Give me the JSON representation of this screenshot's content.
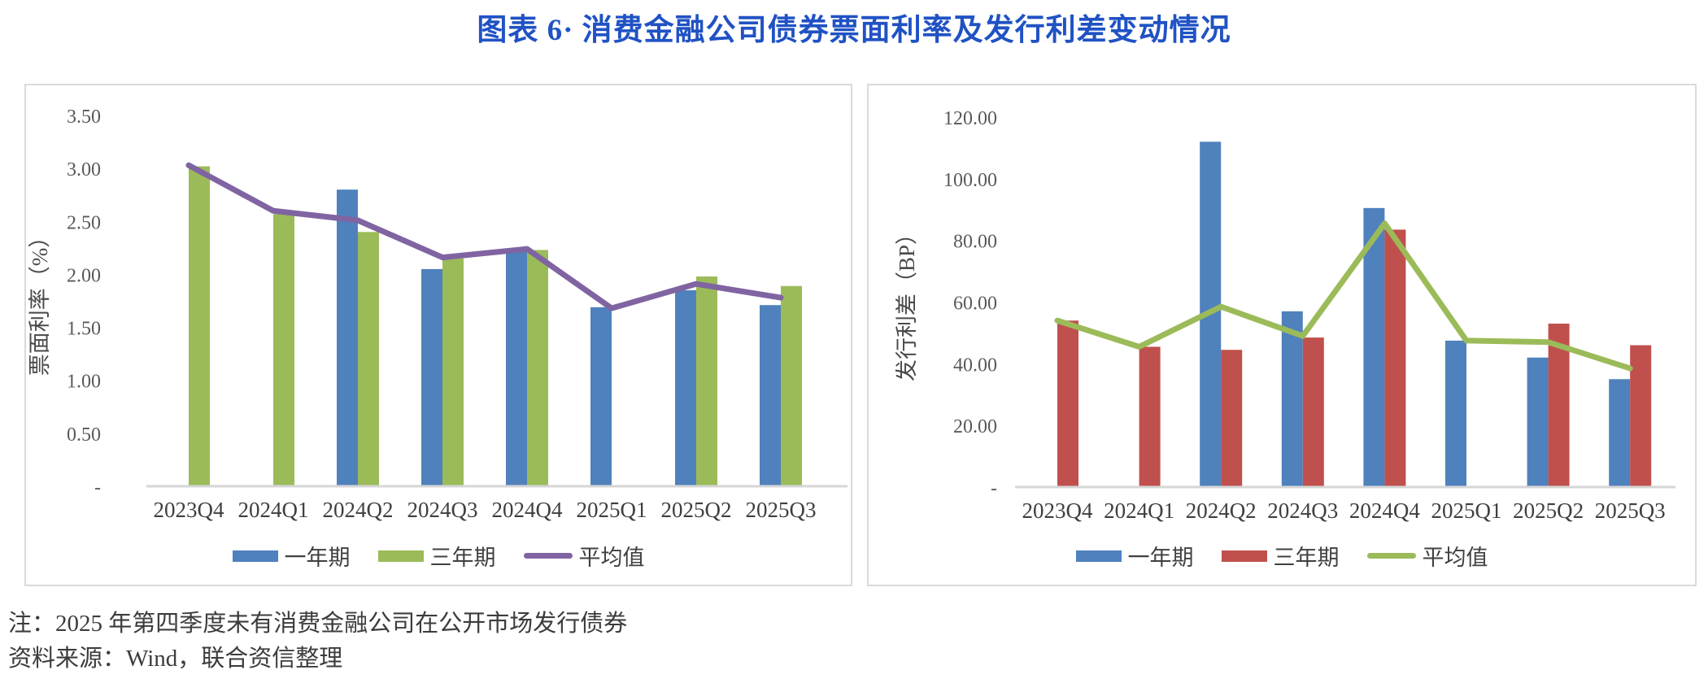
{
  "title": "图表 6· 消费金融公司债券票面利率及发行利差变动情况",
  "notes": [
    "注：2025 年第四季度未有消费金融公司在公开市场发行债券",
    "资料来源：Wind，联合资信整理"
  ],
  "colors": {
    "blue": "#4F81BD",
    "green": "#9BBB59",
    "purple": "#8064A2",
    "red": "#C0504D",
    "axis": "#D6D6D6",
    "title_blue": "#2052C4"
  },
  "chart_data": [
    {
      "type": "bar",
      "name": "coupon-rate-chart",
      "categories": [
        "2023Q4",
        "2024Q1",
        "2024Q2",
        "2024Q3",
        "2024Q4",
        "2025Q1",
        "2025Q2",
        "2025Q3"
      ],
      "series": [
        {
          "name": "一年期",
          "type": "bar",
          "color": "#4F81BD",
          "values": [
            null,
            null,
            2.8,
            2.05,
            2.22,
            1.69,
            1.85,
            1.71
          ]
        },
        {
          "name": "三年期",
          "type": "bar",
          "color": "#9BBB59",
          "values": [
            3.02,
            2.57,
            2.4,
            2.15,
            2.23,
            null,
            1.98,
            1.89
          ]
        },
        {
          "name": "平均值",
          "type": "line",
          "color": "#8064A2",
          "values": [
            3.03,
            2.6,
            2.51,
            2.16,
            2.24,
            1.68,
            1.91,
            1.78
          ]
        }
      ],
      "ylabel": "票面利率（%）",
      "xlabel": "",
      "ylim": [
        0,
        3.5
      ],
      "yticks": [
        {
          "v": 3.5,
          "label": "3.50"
        },
        {
          "v": 3.0,
          "label": "3.00"
        },
        {
          "v": 2.5,
          "label": "2.50"
        },
        {
          "v": 2.0,
          "label": "2.00"
        },
        {
          "v": 1.5,
          "label": "1.50"
        },
        {
          "v": 1.0,
          "label": "1.00"
        },
        {
          "v": 0.5,
          "label": "0.50"
        },
        {
          "v": 0.0,
          "label": "-"
        }
      ],
      "grid": false,
      "legend_position": "bottom"
    },
    {
      "type": "bar",
      "name": "issuance-spread-chart",
      "categories": [
        "2023Q4",
        "2024Q1",
        "2024Q2",
        "2024Q3",
        "2024Q4",
        "2025Q1",
        "2025Q2",
        "2025Q3"
      ],
      "series": [
        {
          "name": "一年期",
          "type": "bar",
          "color": "#4F81BD",
          "values": [
            null,
            null,
            112.0,
            57.0,
            90.5,
            47.5,
            42.0,
            35.0
          ]
        },
        {
          "name": "三年期",
          "type": "bar",
          "color": "#C0504D",
          "values": [
            54.0,
            45.5,
            44.5,
            48.5,
            83.5,
            null,
            53.0,
            46.0
          ]
        },
        {
          "name": "平均值",
          "type": "line",
          "color": "#9BBB59",
          "values": [
            54.0,
            45.5,
            58.5,
            49.0,
            85.5,
            47.5,
            47.0,
            38.5
          ]
        }
      ],
      "ylabel": "发行利差（BP）",
      "xlabel": "",
      "ylim": [
        0,
        120
      ],
      "yticks": [
        {
          "v": 120,
          "label": "120.00"
        },
        {
          "v": 100,
          "label": "100.00"
        },
        {
          "v": 80,
          "label": "80.00"
        },
        {
          "v": 60,
          "label": "60.00"
        },
        {
          "v": 40,
          "label": "40.00"
        },
        {
          "v": 20,
          "label": "20.00"
        },
        {
          "v": 0,
          "label": "-"
        }
      ],
      "grid": false,
      "legend_position": "bottom"
    }
  ]
}
